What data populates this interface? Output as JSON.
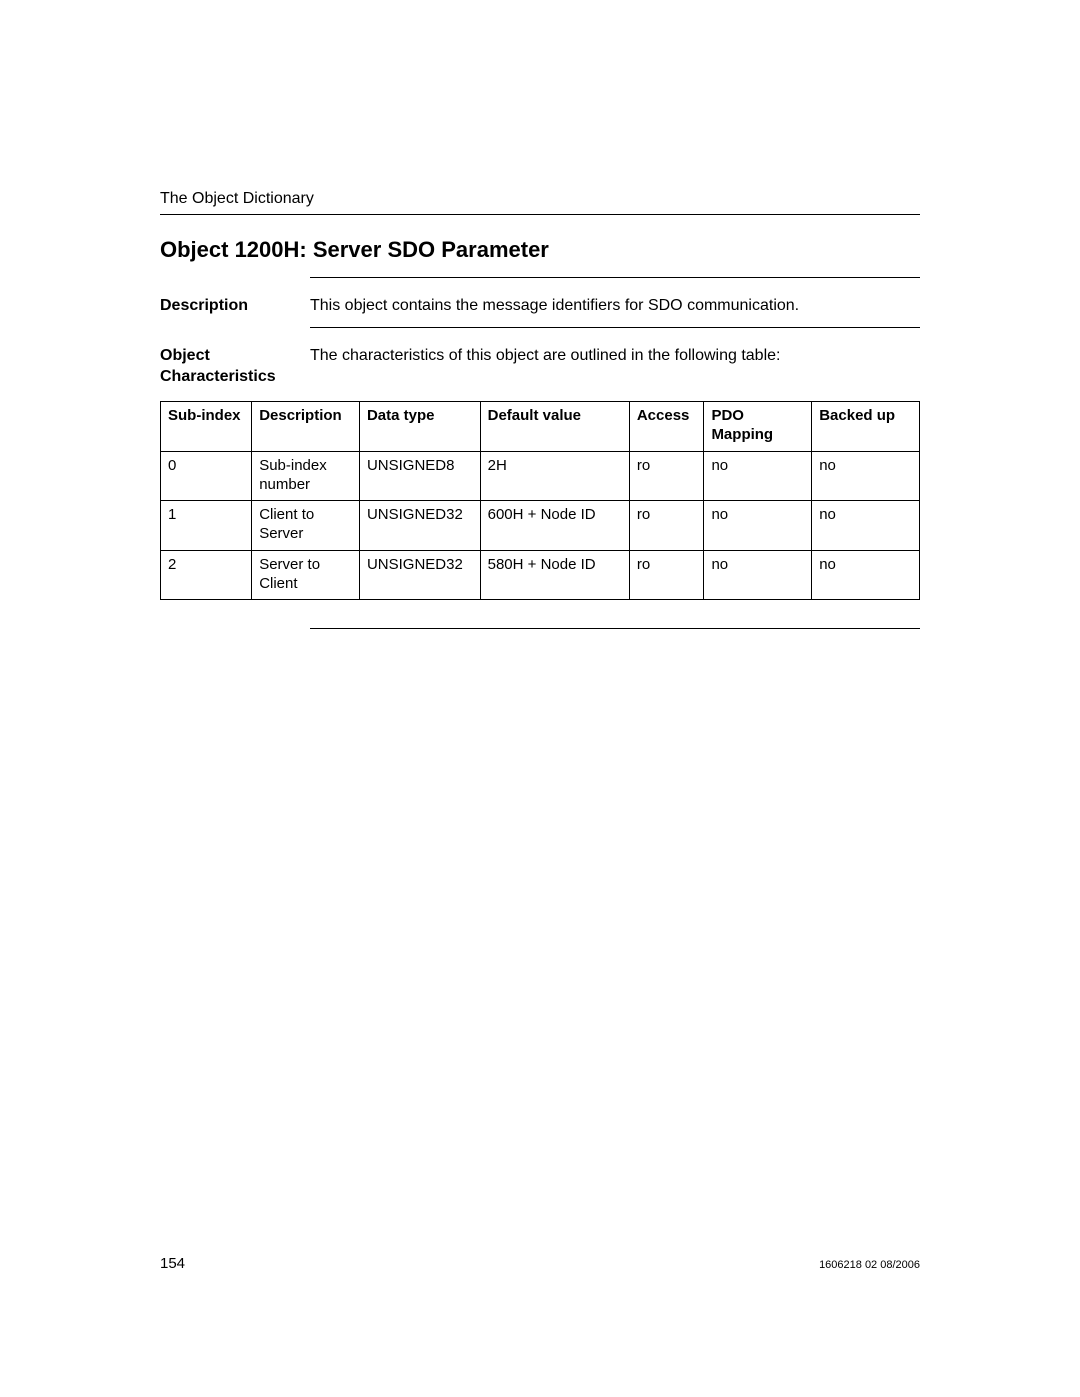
{
  "page": {
    "running_head": "The Object Dictionary",
    "title": "Object 1200H: Server SDO Parameter",
    "page_number": "154",
    "doc_id": "1606218 02 08/2006"
  },
  "sections": {
    "description": {
      "label": "Description",
      "text": "This object contains the message identifiers for SDO communication."
    },
    "characteristics": {
      "label": "Object Characteristics",
      "text": "The characteristics of this object are outlined in the following table:"
    }
  },
  "table": {
    "columns": [
      "Sub-index",
      "Description",
      "Data type",
      "Default value",
      "Access",
      "PDO Mapping",
      "Backed up"
    ],
    "rows": [
      [
        "0",
        "Sub-index number",
        "UNSIGNED8",
        "2H",
        "ro",
        "no",
        "no"
      ],
      [
        "1",
        "Client to Server",
        "UNSIGNED32",
        "600H + Node ID",
        "ro",
        "no",
        "no"
      ],
      [
        "2",
        "Server to Client",
        "UNSIGNED32",
        "580H + Node ID",
        "ro",
        "no",
        "no"
      ]
    ]
  }
}
